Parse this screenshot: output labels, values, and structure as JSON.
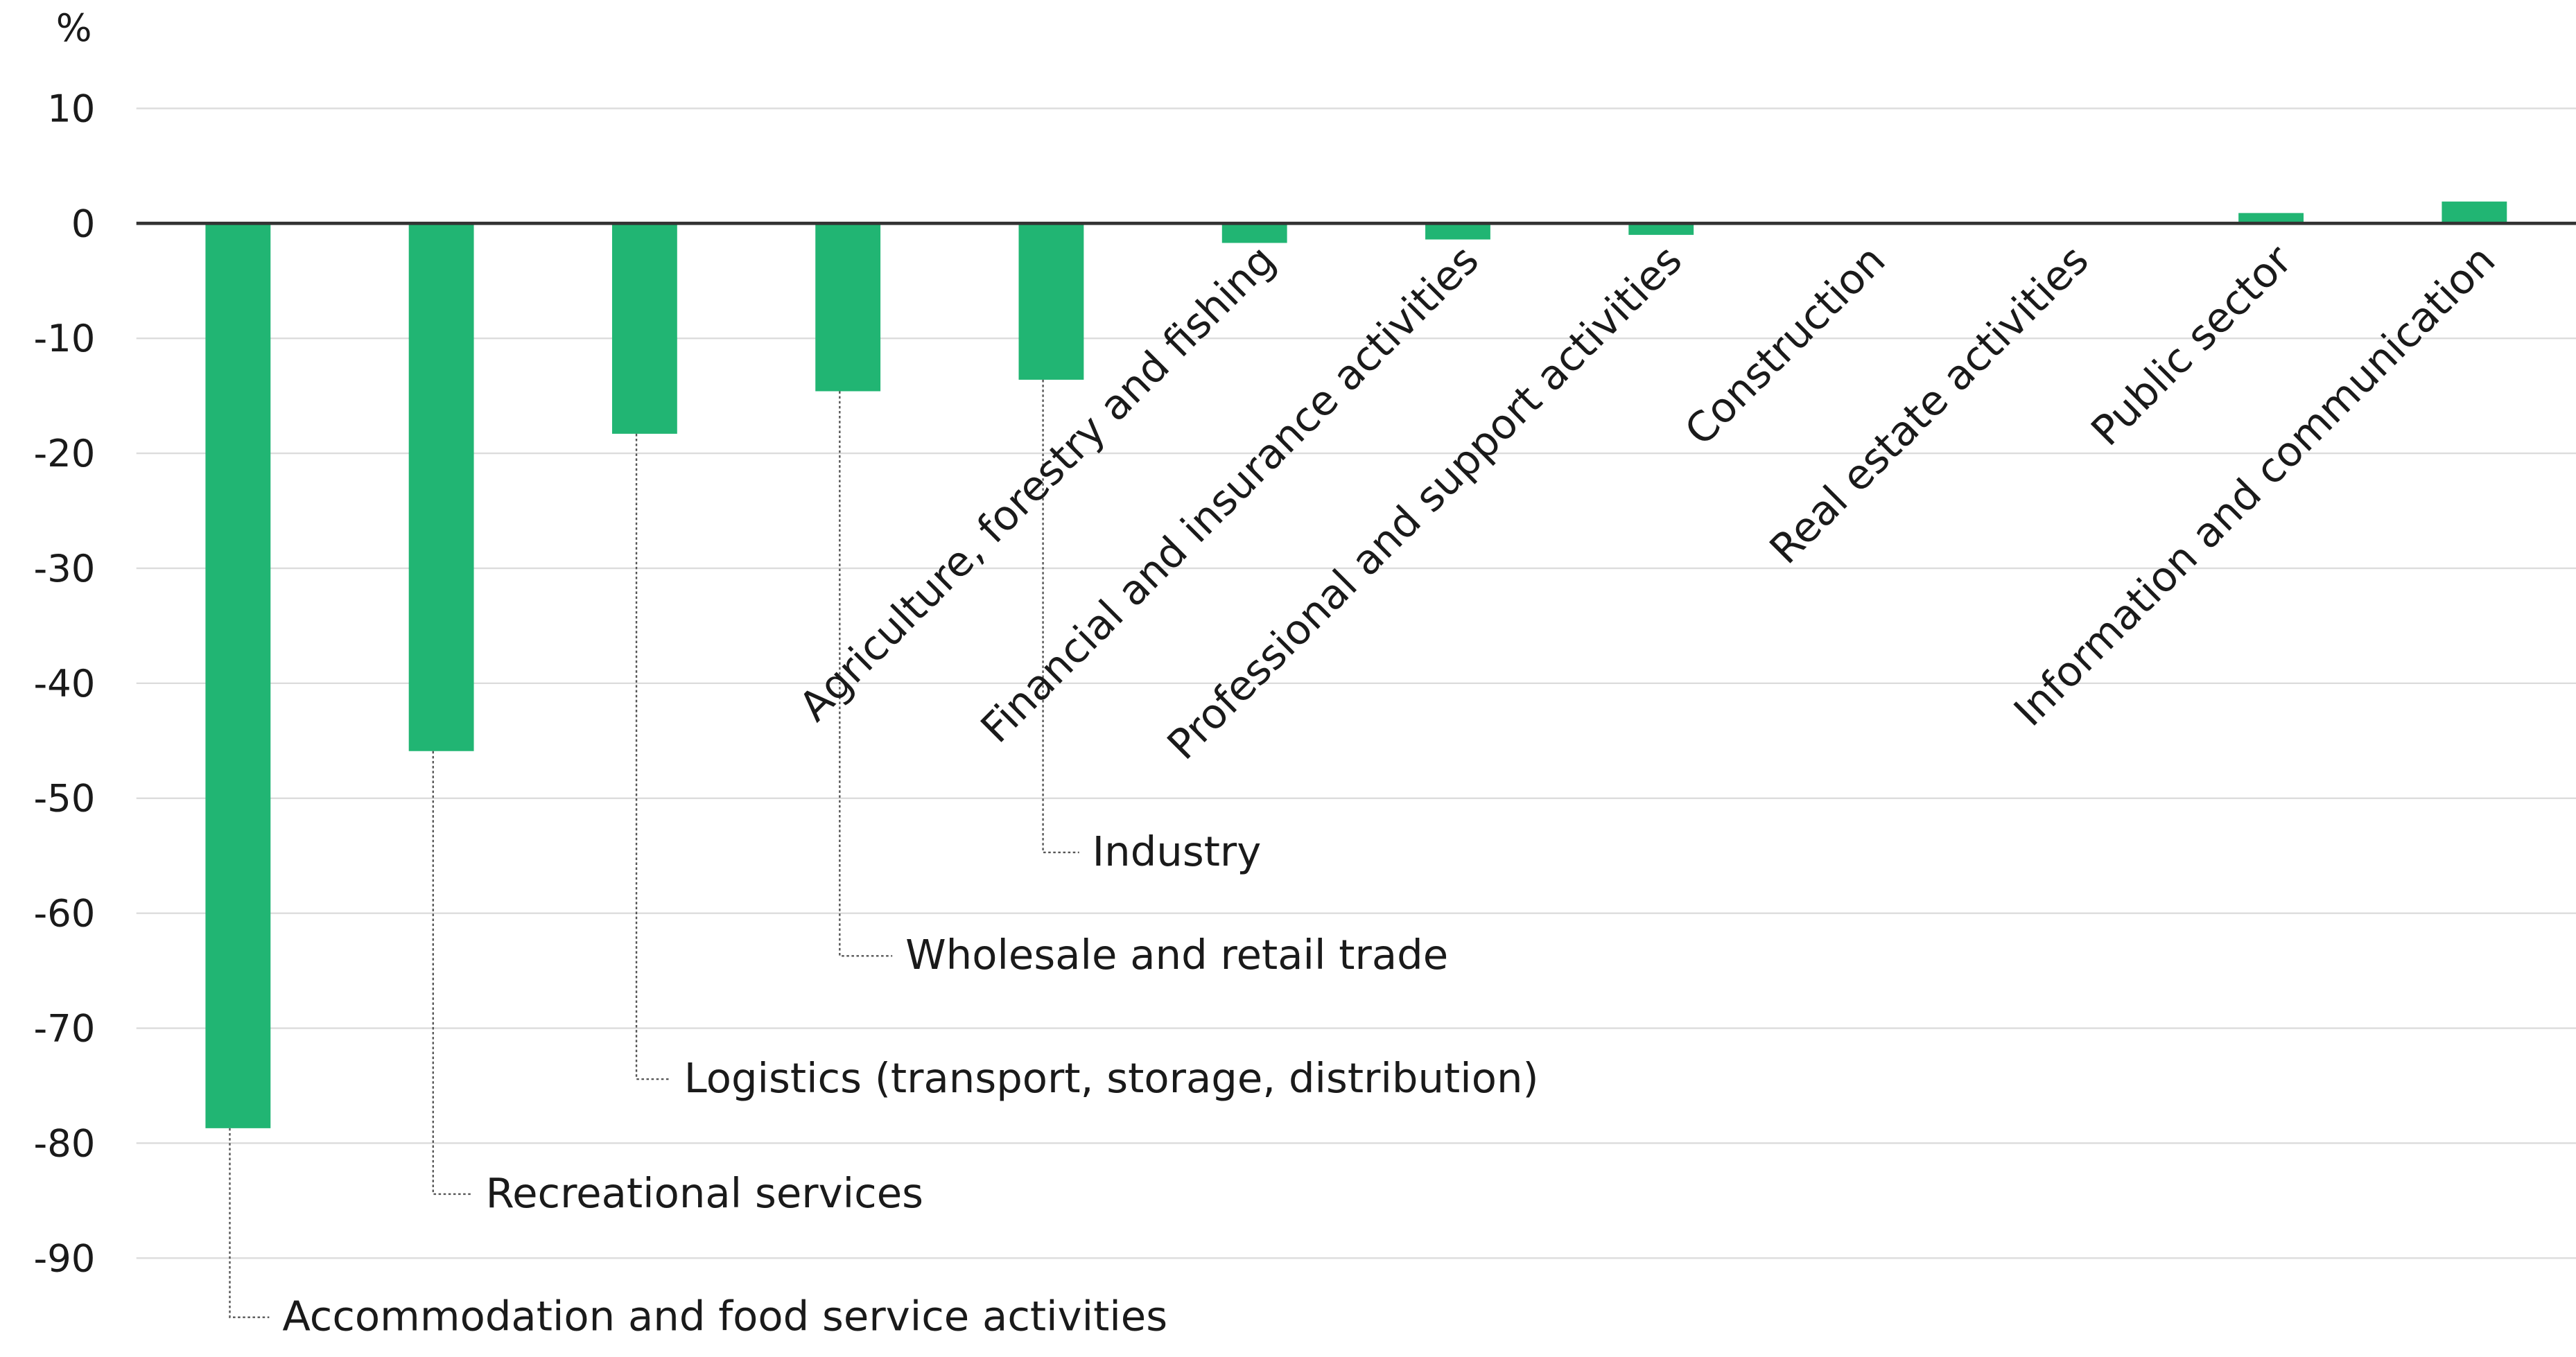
{
  "chart_data": {
    "type": "bar",
    "y_unit_label": "%",
    "categories": [
      "Accommodation and food service activities",
      "Recreational services",
      "Logistics (transport, storage, distribution)",
      "Wholesale and retail trade",
      "Industry",
      "Agriculture, forestry and fishing",
      "Financial and insurance activities",
      "Professional and support activities",
      "Construction",
      "Real estate activities",
      "Public sector",
      "Information and communication"
    ],
    "values": [
      -78.7,
      -45.9,
      -18.3,
      -14.6,
      -13.6,
      -1.7,
      -1.4,
      -1.0,
      0,
      0,
      0.9,
      1.9
    ],
    "color": "#21b573",
    "ylim": [
      -90,
      10
    ],
    "yticks": [
      10,
      0,
      -10,
      -20,
      -30,
      -40,
      -50,
      -60,
      -70,
      -80,
      -90
    ],
    "grid": true
  }
}
